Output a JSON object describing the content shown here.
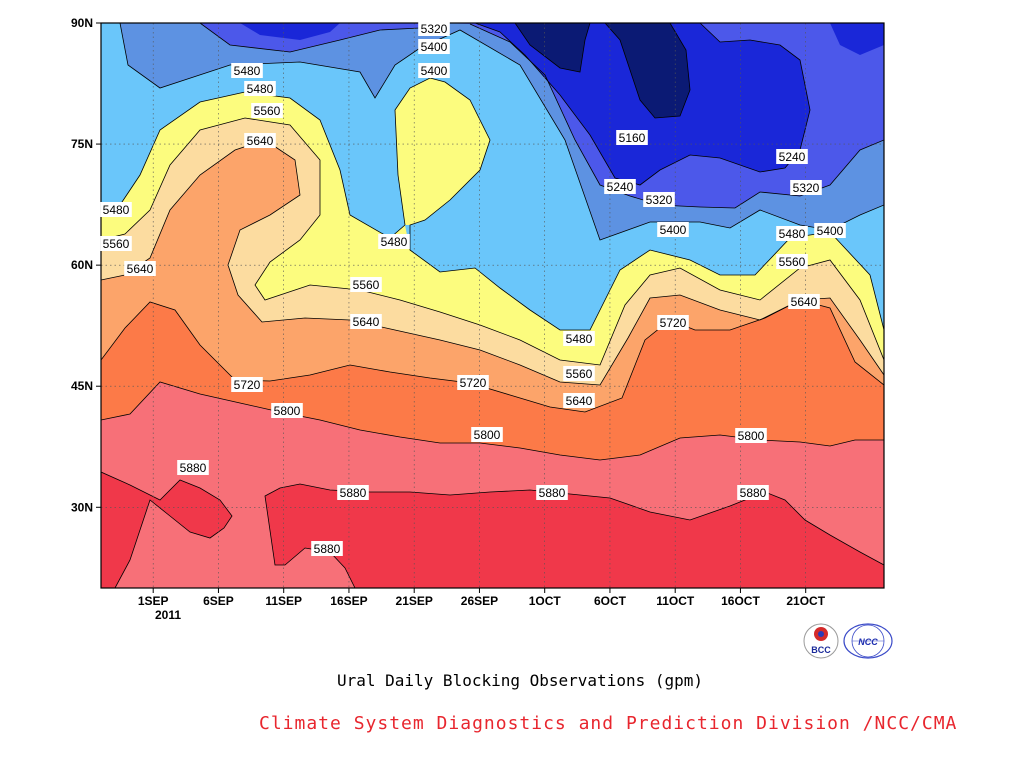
{
  "chart_data": {
    "type": "heatmap",
    "subtype": "filled-contour",
    "title": "Ural Daily Blocking Observations (gpm)",
    "x_axis": {
      "type": "date",
      "range": [
        "2011-08-28",
        "2011-10-27"
      ],
      "tick_labels": [
        "1SEP",
        "6SEP",
        "11SEP",
        "16SEP",
        "21SEP",
        "26SEP",
        "1OCT",
        "6OCT",
        "11OCT",
        "16OCT",
        "21OCT"
      ],
      "tick_dates": [
        "2011-09-01",
        "2011-09-06",
        "2011-09-11",
        "2011-09-16",
        "2011-09-21",
        "2011-09-26",
        "2011-10-01",
        "2011-10-06",
        "2011-10-11",
        "2011-10-16",
        "2011-10-21"
      ],
      "year_label": "2011"
    },
    "y_axis": {
      "range_deg_north": [
        20,
        90
      ],
      "tick_values": [
        30,
        45,
        60,
        75,
        90
      ],
      "tick_labels": [
        "30N",
        "45N",
        "60N",
        "75N",
        "90N"
      ]
    },
    "grid": true,
    "legend": "none",
    "contour_levels_gpm": [
      5160,
      5240,
      5320,
      5400,
      5480,
      5560,
      5640,
      5720,
      5800,
      5880
    ],
    "colors": {
      "below_5160": "#0b1a74",
      "5160_5240": "#1a27d8",
      "5240_5320": "#4c58ea",
      "5320_5400": "#5d92e2",
      "5400_5480": "#6ac6fa",
      "5480_5560": "#fcfc7e",
      "5560_5640": "#fcdca0",
      "5640_5720": "#fca46a",
      "5720_5800": "#fc7a48",
      "5800_5880": "#f77078",
      "above_5880": "#f0384a"
    },
    "series": [
      {
        "level": 5880,
        "lat_deg_north": [
          34.7,
          34.7,
          34.8,
          32.4,
          32.4,
          32.4,
          33.4,
          33.4,
          33.4,
          32.6,
          32.6,
          32.4,
          32.6,
          31.6,
          31.5,
          31.0,
          30.5,
          30.0,
          29.0,
          28.5,
          28.5,
          30.0,
          31.0,
          31.5,
          30.7,
          29.5,
          28.5,
          27.0,
          26.0,
          25.0,
          24.0
        ]
      },
      {
        "level": 5800,
        "lat_deg_north": [
          41.0,
          41.3,
          43.5,
          46.0,
          45.5,
          44.0,
          42.5,
          42.0,
          41.5,
          41.2,
          40.6,
          40.0,
          39.8,
          38.7,
          38.0,
          38.5,
          38.0,
          37.5,
          37.0,
          36.5,
          36.5,
          37.0,
          38.5,
          39.0,
          39.0,
          38.8,
          38.5,
          38.4,
          38.5,
          38.0,
          38.0
        ]
      },
      {
        "level": 5720,
        "lat_deg_north": [
          48.0,
          51.0,
          55.5,
          54.0,
          49.0,
          46.0,
          46.0,
          46.5,
          46.5,
          48.5,
          47.0,
          45.5,
          45.5,
          45.8,
          46.2,
          45.0,
          43.5,
          42.5,
          41.5,
          40.5,
          43.0,
          52.0,
          56.0,
          54.0,
          52.0,
          52.0,
          52.0,
          47.0,
          44.0,
          42.0,
          41.0
        ]
      },
      {
        "level": 5640,
        "lat_deg_north": [
          57.5,
          59.0,
          60.0,
          64.0,
          70.0,
          73.0,
          57.0,
          54.5,
          53.5,
          52.5,
          52.0,
          51.0,
          50.5,
          49.5,
          48.8,
          48.0,
          47.0,
          46.0,
          45.0,
          44.0,
          51.0,
          54.0,
          55.0,
          55.0,
          51.0,
          51.0,
          53.0,
          55.0,
          51.0,
          47.0,
          45.5
        ]
      }
    ]
  },
  "contour_labels": [
    "5320",
    "5400",
    "5480",
    "5400",
    "5480",
    "5560",
    "5640",
    "5480",
    "5560",
    "5640",
    "5480",
    "5560",
    "5640",
    "5720",
    "5720",
    "5800",
    "5800",
    "5880",
    "5880",
    "5880",
    "5880",
    "5880",
    "5800",
    "5160",
    "5240",
    "5320",
    "5240",
    "5320",
    "5400",
    "5400",
    "5480",
    "5560",
    "5640",
    "5480",
    "5560",
    "5640",
    "5720"
  ],
  "logos": {
    "left_text": "BCC",
    "right_text": "NCC"
  },
  "credit": "Climate System Diagnostics and Prediction Division /NCC/CMA"
}
